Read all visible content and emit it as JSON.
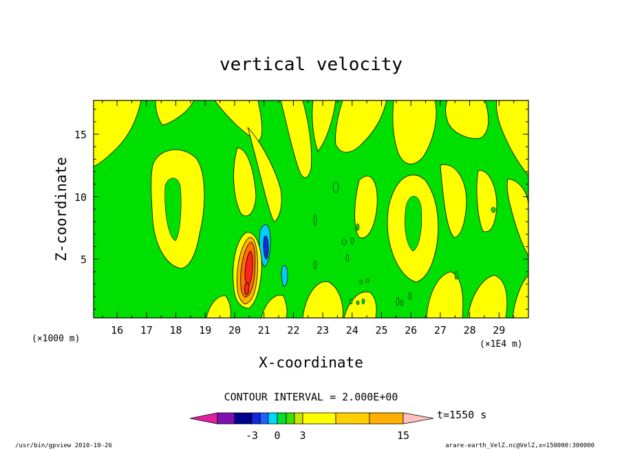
{
  "chart_data": {
    "type": "contour",
    "title": "vertical velocity",
    "xlabel": "X-coordinate",
    "ylabel": "Z-coordinate",
    "x_unit": "(×1E4 m)",
    "y_unit": "(×1000 m)",
    "xlim": [
      15.2,
      30.0
    ],
    "ylim": [
      0.3,
      17.7
    ],
    "x_ticks": [
      "16",
      "17",
      "18",
      "19",
      "20",
      "21",
      "22",
      "23",
      "24",
      "25",
      "26",
      "27",
      "28",
      "29"
    ],
    "x_tick_values": [
      16,
      17,
      18,
      19,
      20,
      21,
      22,
      23,
      24,
      25,
      26,
      27,
      28,
      29
    ],
    "y_ticks": [
      "5",
      "10",
      "15"
    ],
    "y_tick_values": [
      5,
      10,
      15
    ],
    "contour_interval": "CONTOUR INTERVAL = 2.000E+00",
    "time_label": "t=1550 s",
    "colorbar": {
      "labels": [
        "-3",
        "0",
        "3",
        "15"
      ],
      "label_values": [
        -3,
        0,
        3,
        15
      ],
      "colors": [
        "#e020a0",
        "#7f10b0",
        "#00008f",
        "#1428e0",
        "#2060ff",
        "#00d8ff",
        "#00e030",
        "#40e000",
        "#c8e800",
        "#ffff00",
        "#ffd000",
        "#ffb000",
        "#ff6a00",
        "#ff2010",
        "#ff7878",
        "#ffc0c0"
      ]
    },
    "grid": false
  },
  "footer": {
    "left": "/usr/bin/gpview   2010-10-26",
    "right": "arare-earth_VelZ.nc@VelZ,x=150000:300000"
  },
  "colors": {
    "green": "#00e000",
    "yellow": "#ffff00",
    "cyan": "#00ccff",
    "blue": "#1030d0",
    "orange": "#ff7000",
    "red": "#ff2020"
  }
}
